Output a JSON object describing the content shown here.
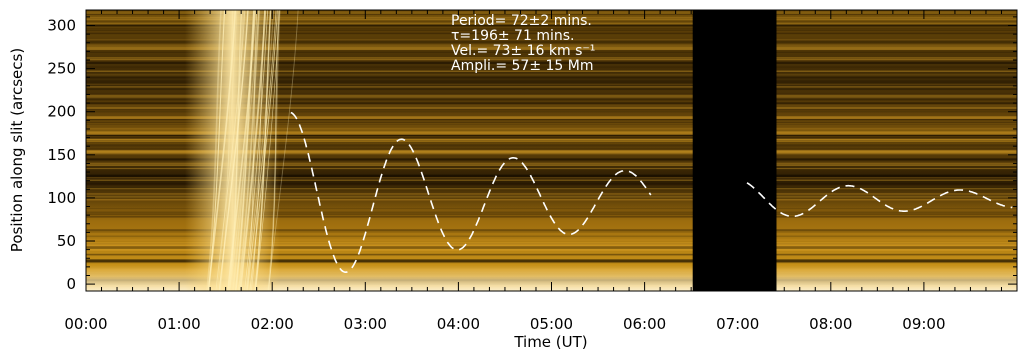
{
  "chart_data": {
    "type": "heatmap",
    "xlabel": "Time (UT)",
    "ylabel": "Position along slit (arcsecs)",
    "xlim": [
      0,
      600
    ],
    "ylim": [
      -8,
      318
    ],
    "x_ticks": [
      {
        "value": 0,
        "label": "00:00"
      },
      {
        "value": 60,
        "label": "01:00"
      },
      {
        "value": 120,
        "label": "02:00"
      },
      {
        "value": 180,
        "label": "03:00"
      },
      {
        "value": 240,
        "label": "04:00"
      },
      {
        "value": 300,
        "label": "05:00"
      },
      {
        "value": 360,
        "label": "06:00"
      },
      {
        "value": 420,
        "label": "07:00"
      },
      {
        "value": 480,
        "label": "08:00"
      },
      {
        "value": 540,
        "label": "09:00"
      }
    ],
    "y_ticks": [
      {
        "value": 0,
        "label": "0"
      },
      {
        "value": 50,
        "label": "50"
      },
      {
        "value": 100,
        "label": "100"
      },
      {
        "value": 150,
        "label": "150"
      },
      {
        "value": 200,
        "label": "200"
      },
      {
        "value": 250,
        "label": "250"
      },
      {
        "value": 300,
        "label": "300"
      }
    ],
    "annotations": [
      "Period= 72±2 mins.",
      "τ=196± 71 mins.",
      "Vel.= 73± 16 km s⁻¹",
      "Ampli.= 57± 15 Mm"
    ],
    "data_gap": [
      391,
      445
    ],
    "fit_curve": {
      "style": "dashed",
      "color": "#ffffff",
      "t_start": 132,
      "t_end": 597,
      "gap": [
        364,
        426
      ],
      "y0": 199,
      "offset": 98,
      "amplitude": 110,
      "period": 72,
      "damping": 196,
      "slope": 0.0
    },
    "colors": {
      "background_dark": "#1a1000",
      "background_mid": "#b07a0e",
      "bright": "#ffe08a",
      "gap": "#000000"
    }
  }
}
